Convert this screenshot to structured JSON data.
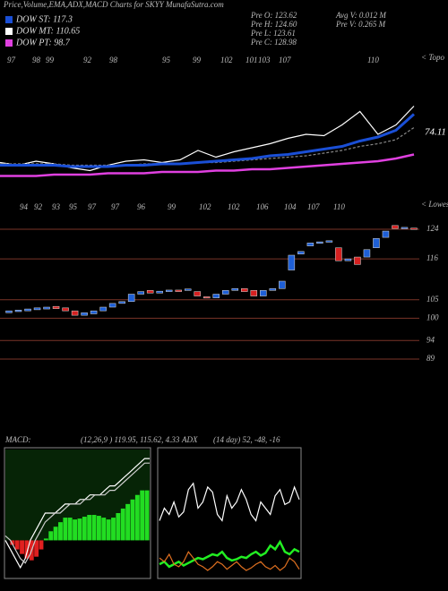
{
  "header": {
    "title": "Price,Volume,EMA,ADX,MACD Charts for SKYY MunafaSutra.com"
  },
  "legend": [
    {
      "name": "DOW ST: 117.3",
      "color": "#1a4fd6"
    },
    {
      "name": "DOW MT: 110.65",
      "color": "#ffffff"
    },
    {
      "name": "DOW PT: 98.7",
      "color": "#e040e0"
    }
  ],
  "info": {
    "left": [
      "Pre O: 123.62",
      "Pre H: 124.60",
      "Pre L: 123.61",
      "Pre C: 128.98"
    ],
    "right": [
      "Avg V: 0.012 M",
      "Pre V: 0.265 M"
    ]
  },
  "chart_data": [
    {
      "type": "line",
      "labels_top": [
        "97",
        "98",
        "99",
        "92",
        "98",
        "95",
        "99",
        "102",
        "101",
        "103",
        "107",
        "110"
      ],
      "labels_bottom": [
        "94",
        "92",
        "93",
        "95",
        "97",
        "97",
        "96",
        "99",
        "102",
        "102",
        "106",
        "104",
        "107",
        "110"
      ],
      "top_note": "< Topo",
      "bottom_note": "< Lowes",
      "annotation": "74.11",
      "ylim": [
        0,
        100
      ],
      "series": [
        {
          "color": "#ffffff",
          "values": [
            19,
            17,
            20,
            18,
            15,
            13,
            17,
            20,
            21,
            19,
            21,
            28,
            23,
            27,
            30,
            33,
            37,
            40,
            39,
            47,
            57,
            40,
            47,
            61
          ]
        },
        {
          "color": "#888888",
          "values": [
            18,
            18,
            18,
            18,
            17,
            17,
            17,
            17,
            18,
            18,
            18,
            19,
            19,
            20,
            21,
            22,
            23,
            24,
            26,
            28,
            31,
            33,
            36,
            45
          ]
        },
        {
          "color": "#1a4fd6",
          "values": [
            17,
            17,
            17,
            17,
            16,
            16,
            16,
            17,
            17,
            18,
            18,
            19,
            20,
            21,
            22,
            24,
            25,
            27,
            29,
            31,
            35,
            38,
            43,
            55
          ]
        },
        {
          "color": "#e040e0",
          "values": [
            9,
            9,
            9,
            10,
            10,
            10,
            11,
            11,
            11,
            12,
            12,
            12,
            13,
            13,
            14,
            14,
            15,
            16,
            17,
            18,
            19,
            20,
            22,
            25
          ]
        }
      ]
    },
    {
      "type": "candlestick",
      "ylim": [
        87,
        126
      ],
      "yticks": [
        124,
        116,
        105,
        100,
        94,
        89
      ],
      "up_color": "#1e5fd6",
      "down_color": "#d62020",
      "open": [
        101.5,
        101.8,
        102,
        102.3,
        102.5,
        103.2,
        102.8,
        102,
        100.8,
        101.2,
        102,
        103,
        104,
        104.5,
        106.5,
        107.5,
        106.8,
        107.2,
        107.6,
        107.5,
        107.2,
        105.8,
        105.5,
        106.5,
        107.5,
        108,
        107.5,
        106,
        107.5,
        108,
        113,
        117.3,
        119.5,
        120.2,
        120.5,
        119,
        115.5,
        116.5,
        116.5,
        119,
        121.8,
        125,
        124.2,
        124.3
      ],
      "close": [
        102,
        102.2,
        102.5,
        102.8,
        103,
        102.6,
        102,
        100.8,
        101.5,
        102,
        103,
        104,
        104.5,
        106.5,
        107.2,
        106.8,
        107.3,
        107.6,
        107.2,
        107.9,
        106,
        105.5,
        106.5,
        107.5,
        108,
        107.2,
        106,
        107.5,
        108,
        110,
        117,
        118,
        120.3,
        120.6,
        120.9,
        115.5,
        116,
        114.5,
        118.5,
        121.5,
        123.5,
        124.2,
        124.5,
        124.1
      ]
    },
    {
      "type": "macd",
      "title": "MACD:",
      "subtitle": "(12,26,9 ) 119.95, 115.62, 4.33",
      "ylim": [
        -4,
        10
      ],
      "series": [
        {
          "kind": "histogram",
          "color": "#22dd22",
          "values": [
            0,
            -0.5,
            -1,
            -1.5,
            -2,
            -2.2,
            -1.8,
            -1,
            0.2,
            1,
            1.5,
            2,
            2.5,
            2.5,
            2.3,
            2.4,
            2.6,
            2.8,
            2.8,
            2.7,
            2.5,
            2.3,
            2.5,
            3,
            3.5,
            4,
            4.5,
            5,
            5.5,
            5.5
          ]
        },
        {
          "kind": "line",
          "color": "#ffffff",
          "values": [
            0,
            -1,
            -2,
            -3,
            -2,
            0,
            1,
            2,
            3,
            3,
            3,
            3.5,
            4,
            4,
            4,
            4.5,
            4.5,
            5,
            5,
            5,
            5.5,
            6,
            6,
            6.5,
            7,
            7.5,
            8,
            8.5,
            9,
            9
          ]
        },
        {
          "kind": "line",
          "color": "#cccccc",
          "values": [
            0.5,
            0,
            -1,
            -2,
            -2.5,
            -1.5,
            0,
            1,
            2,
            2.5,
            3,
            3,
            3.5,
            4,
            4,
            4,
            4.5,
            4.5,
            5,
            5,
            5,
            5.5,
            5.5,
            6,
            6.5,
            7,
            7.5,
            8,
            8.5,
            8.5
          ]
        }
      ]
    },
    {
      "type": "adx",
      "title": "ADX",
      "subtitle": "(14 day) 52, -48, -16",
      "ylim": [
        0,
        100
      ],
      "series": [
        {
          "color": "#ffffff",
          "values": [
            45,
            55,
            50,
            60,
            48,
            52,
            70,
            75,
            55,
            60,
            72,
            68,
            50,
            45,
            65,
            55,
            60,
            70,
            62,
            50,
            45,
            60,
            55,
            50,
            65,
            70,
            58,
            60,
            72,
            62
          ]
        },
        {
          "color": "#22ee22",
          "values": [
            10,
            12,
            8,
            10,
            12,
            9,
            11,
            13,
            15,
            14,
            16,
            18,
            17,
            20,
            15,
            13,
            14,
            16,
            15,
            18,
            20,
            17,
            19,
            25,
            22,
            28,
            20,
            18,
            22,
            20
          ]
        },
        {
          "color": "#e07020",
          "values": [
            15,
            12,
            18,
            10,
            8,
            12,
            20,
            15,
            10,
            8,
            5,
            8,
            12,
            10,
            6,
            9,
            12,
            8,
            5,
            7,
            10,
            12,
            8,
            6,
            9,
            5,
            8,
            15,
            12,
            6
          ]
        }
      ]
    }
  ]
}
